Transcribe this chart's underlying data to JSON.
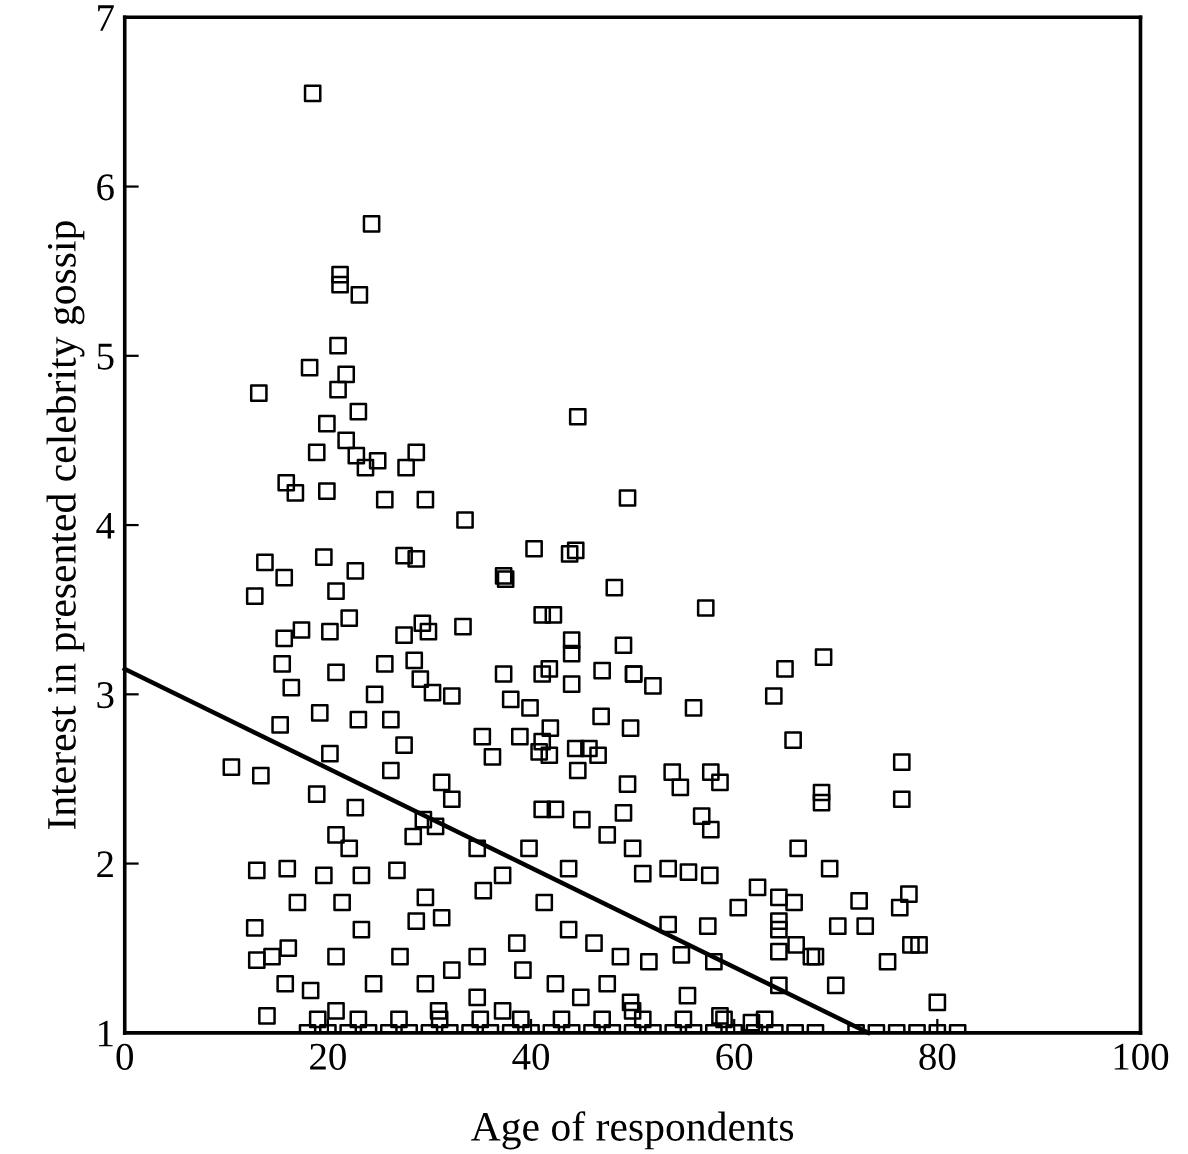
{
  "chart_data": {
    "type": "scatter",
    "xlabel": "Age of respondents",
    "ylabel": "Interest in presented celebrity gossip",
    "xlim": [
      0,
      100
    ],
    "xticks": [
      0,
      20,
      40,
      60,
      80,
      100
    ],
    "ylim": [
      1,
      7
    ],
    "yticks": [
      1,
      2,
      3,
      4,
      5,
      6,
      7
    ],
    "grid": false,
    "legend": false,
    "series": [
      {
        "marker": "square",
        "color": "#000000",
        "x": [
          18.5,
          24.3,
          21.2,
          21.2,
          23.1,
          21.0,
          18.2,
          21.8,
          13.2,
          21.0,
          23.0,
          19.9,
          44.6,
          21.8,
          18.9,
          22.8,
          24.9,
          28.7,
          27.7,
          23.7,
          15.9,
          16.8,
          19.9,
          25.6,
          29.6,
          33.5,
          49.5,
          40.3,
          44.4,
          43.8,
          13.8,
          27.5,
          28.7,
          37.3,
          57.2,
          68.8,
          65.0,
          63.9,
          50.1,
          52.0,
          56.0,
          65.8,
          76.5,
          76.5,
          68.6,
          68.6,
          53.9,
          54.7,
          57.7,
          58.6,
          56.8,
          57.7,
          66.3,
          69.4,
          53.5,
          55.5,
          57.6,
          62.3,
          64.4,
          65.9,
          72.3,
          77.2,
          76.3,
          60.4,
          57.4,
          64.4,
          70.2,
          72.9,
          64.4,
          66.1,
          67.6,
          68.0,
          64.4,
          77.4,
          78.2,
          75.1,
          70.0,
          80.0,
          64.4,
          15.7,
          12.8,
          17.4,
          15.7,
          15.5,
          16.4,
          15.3,
          10.5,
          13.4,
          13.0,
          16.0,
          12.8,
          16.1,
          13.0,
          14.0,
          27.5,
          29.3,
          29.9,
          33.3,
          37.5,
          41.1,
          42.2,
          44.0,
          44.0,
          48.2,
          49.1,
          37.3,
          41.1,
          41.8,
          44.0,
          47.0,
          50.1,
          29.1,
          30.3,
          32.2,
          38.0,
          39.9,
          35.2,
          36.2,
          38.9,
          41.1,
          41.9,
          46.9,
          49.8,
          40.8,
          41.8,
          44.4,
          45.7,
          46.6,
          44.6,
          49.5,
          31.2,
          32.2,
          41.1,
          25.6,
          28.5,
          24.6,
          26.2,
          27.5,
          26.2,
          29.4,
          30.6,
          28.4,
          26.8,
          29.6,
          31.2,
          28.7,
          35.3,
          34.7,
          37.2,
          39.8,
          42.4,
          45.0,
          47.5,
          50.0,
          43.7,
          41.3,
          43.7,
          46.2,
          48.8,
          38.6,
          34.7,
          32.2,
          29.6,
          27.1,
          24.5,
          23.3,
          20.8,
          18.3,
          15.8,
          14.5,
          17.0,
          19.6,
          20.8,
          18.9,
          20.2,
          19.2,
          20.8,
          20.2,
          20.8,
          22.7,
          19.6,
          22.1,
          23.0,
          22.7,
          22.1,
          21.4,
          23.3,
          39.2,
          42.4,
          47.5,
          44.9,
          34.7,
          37.2,
          30.9,
          20.8,
          50.0,
          49.1,
          51.0,
          53.5,
          51.6,
          55.4,
          58.6,
          61.7,
          54.8,
          58.0,
          49.8,
          18,
          20,
          22,
          24,
          26,
          28,
          30,
          32,
          34,
          36,
          38,
          40,
          42,
          44,
          46,
          48,
          50,
          52,
          54,
          56,
          58,
          60,
          62,
          64,
          66,
          68,
          72,
          74,
          76,
          78,
          80,
          82,
          19,
          23,
          27,
          31,
          35,
          39,
          43,
          47,
          51,
          55,
          59,
          63
        ],
        "values": [
          6.55,
          5.78,
          5.48,
          5.42,
          5.36,
          5.06,
          4.93,
          4.89,
          4.78,
          4.8,
          4.67,
          4.6,
          4.64,
          4.5,
          4.43,
          4.41,
          4.38,
          4.43,
          4.34,
          4.34,
          4.25,
          4.19,
          4.2,
          4.15,
          4.15,
          4.03,
          4.16,
          3.86,
          3.85,
          3.83,
          3.78,
          3.82,
          3.8,
          3.7,
          3.51,
          3.22,
          3.15,
          2.99,
          3.12,
          3.05,
          2.92,
          2.73,
          2.6,
          2.38,
          2.42,
          2.36,
          2.54,
          2.45,
          2.54,
          2.48,
          2.28,
          2.2,
          2.09,
          1.97,
          1.97,
          1.95,
          1.93,
          1.86,
          1.8,
          1.77,
          1.78,
          1.82,
          1.74,
          1.74,
          1.63,
          1.66,
          1.63,
          1.63,
          1.61,
          1.52,
          1.45,
          1.45,
          1.48,
          1.52,
          1.52,
          1.42,
          1.28,
          1.18,
          1.28,
          3.69,
          3.58,
          3.38,
          3.33,
          3.18,
          3.04,
          2.82,
          2.57,
          2.52,
          1.96,
          1.97,
          1.62,
          1.5,
          1.43,
          1.1,
          3.35,
          3.42,
          3.37,
          3.4,
          3.68,
          3.47,
          3.47,
          3.32,
          3.24,
          3.63,
          3.29,
          3.12,
          3.12,
          3.15,
          3.06,
          3.14,
          3.12,
          3.09,
          3.01,
          2.99,
          2.97,
          2.92,
          2.75,
          2.63,
          2.75,
          2.72,
          2.8,
          2.87,
          2.8,
          2.66,
          2.64,
          2.68,
          2.68,
          2.64,
          2.55,
          2.47,
          2.48,
          2.38,
          2.32,
          3.18,
          3.2,
          3.0,
          2.85,
          2.7,
          2.55,
          2.26,
          2.22,
          2.16,
          1.96,
          1.8,
          1.68,
          1.66,
          1.84,
          2.09,
          1.93,
          2.09,
          2.32,
          2.26,
          2.17,
          2.09,
          1.97,
          1.77,
          1.61,
          1.53,
          1.45,
          1.53,
          1.45,
          1.37,
          1.29,
          1.45,
          1.29,
          1.61,
          1.45,
          1.25,
          1.29,
          1.45,
          1.77,
          1.93,
          2.17,
          2.41,
          2.65,
          2.89,
          3.13,
          3.37,
          3.61,
          3.73,
          3.81,
          3.45,
          2.85,
          2.33,
          2.09,
          1.77,
          1.93,
          1.37,
          1.29,
          1.29,
          1.21,
          1.21,
          1.13,
          1.13,
          1.13,
          1.13,
          2.3,
          1.94,
          1.64,
          1.42,
          1.22,
          1.1,
          1.06,
          1.46,
          1.42,
          1.18,
          1,
          1,
          1,
          1,
          1,
          1,
          1,
          1,
          1,
          1,
          1,
          1,
          1,
          1,
          1,
          1,
          1,
          1,
          1,
          1,
          1,
          1,
          1,
          1,
          1,
          1,
          1,
          1,
          1,
          1,
          1,
          1,
          1.08,
          1.08,
          1.08,
          1.08,
          1.08,
          1.08,
          1.08,
          1.08,
          1.08,
          1.08,
          1.08,
          1.08
        ]
      },
      {
        "type": "line",
        "color": "#000000",
        "line_style": "solid",
        "marker": "none",
        "x": [
          0,
          73.2
        ],
        "values": [
          3.15,
          1
        ]
      }
    ]
  }
}
